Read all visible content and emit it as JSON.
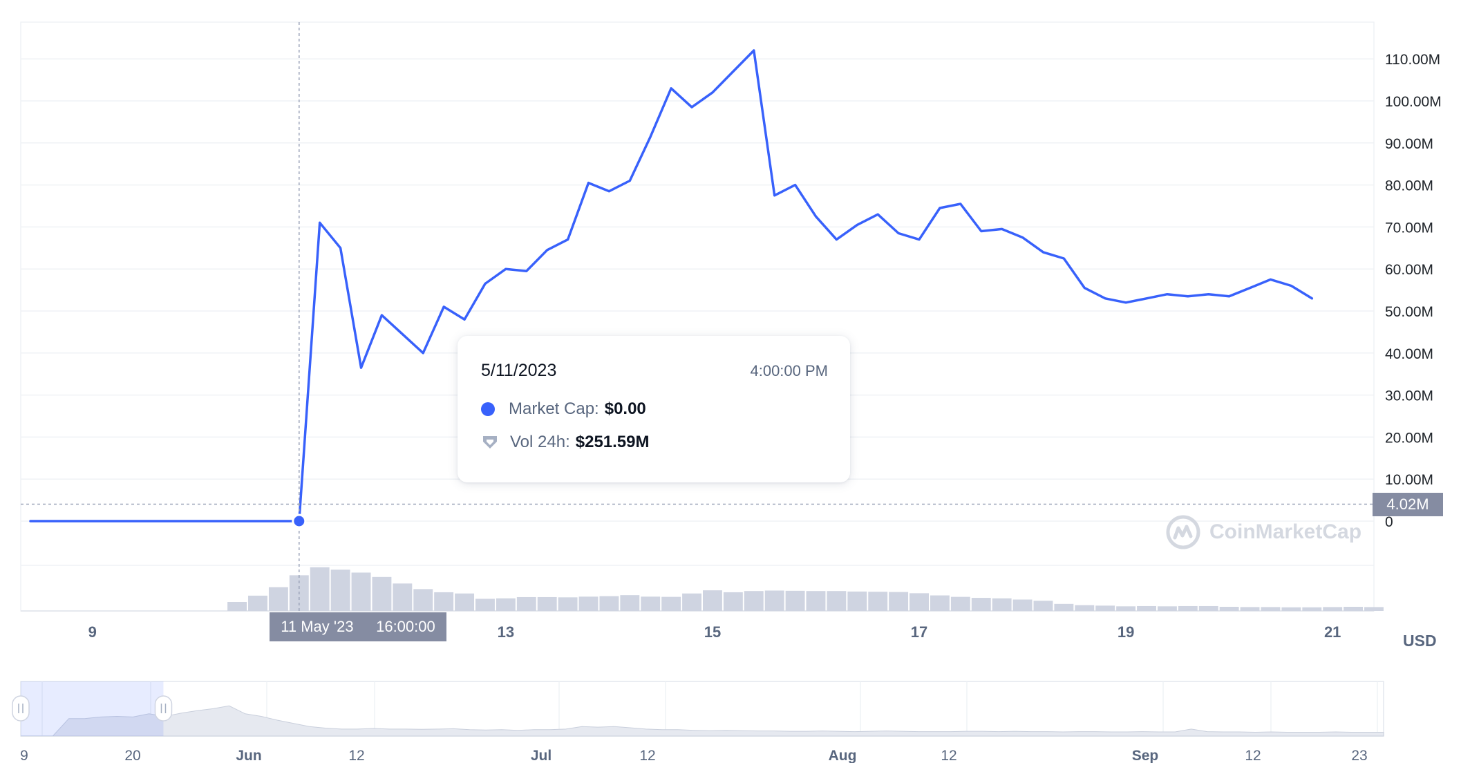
{
  "chart_data": {
    "type": "line",
    "y_axis": {
      "ticks": [
        "0",
        "10.00M",
        "20.00M",
        "30.00M",
        "40.00M",
        "50.00M",
        "60.00M",
        "70.00M",
        "80.00M",
        "90.00M",
        "100.00M",
        "110.00M"
      ],
      "tick_values": [
        0,
        10,
        20,
        30,
        40,
        50,
        60,
        70,
        80,
        90,
        100,
        110
      ],
      "unit": "M",
      "ylim": [
        0,
        120
      ],
      "position": "right"
    },
    "x_axis": {
      "ticks": [
        "9",
        "13",
        "15",
        "17",
        "19",
        "21"
      ],
      "tick_values": [
        9,
        13,
        15,
        17,
        19,
        21
      ],
      "xlim": [
        8.4,
        21.4
      ]
    },
    "currency": "USD",
    "series": [
      {
        "name": "Market Cap",
        "color": "#3861fb",
        "unit": "M",
        "points": [
          [
            8.4,
            0
          ],
          [
            11.0,
            0
          ],
          [
            11.2,
            71
          ],
          [
            11.4,
            65
          ],
          [
            11.6,
            36.5
          ],
          [
            11.8,
            49
          ],
          [
            12.0,
            44.5
          ],
          [
            12.2,
            40
          ],
          [
            12.4,
            51
          ],
          [
            12.6,
            48
          ],
          [
            12.8,
            56.5
          ],
          [
            13.0,
            60
          ],
          [
            13.2,
            59.5
          ],
          [
            13.4,
            64.5
          ],
          [
            13.6,
            67
          ],
          [
            13.8,
            80.5
          ],
          [
            14.0,
            78.5
          ],
          [
            14.2,
            81
          ],
          [
            14.4,
            91.5
          ],
          [
            14.6,
            103
          ],
          [
            14.8,
            98.5
          ],
          [
            15.0,
            102
          ],
          [
            15.2,
            107
          ],
          [
            15.4,
            112
          ],
          [
            15.6,
            77.5
          ],
          [
            15.8,
            80
          ],
          [
            16.0,
            72.5
          ],
          [
            16.2,
            67
          ],
          [
            16.4,
            70.5
          ],
          [
            16.6,
            73
          ],
          [
            16.8,
            68.5
          ],
          [
            17.0,
            67
          ],
          [
            17.2,
            74.5
          ],
          [
            17.4,
            75.5
          ],
          [
            17.6,
            69
          ],
          [
            17.8,
            69.5
          ],
          [
            18.0,
            67.5
          ],
          [
            18.2,
            64
          ],
          [
            18.4,
            62.5
          ],
          [
            18.6,
            55.5
          ],
          [
            18.8,
            53
          ],
          [
            19.0,
            52
          ],
          [
            19.2,
            53
          ],
          [
            19.4,
            54
          ],
          [
            19.6,
            53.5
          ],
          [
            19.8,
            54
          ],
          [
            20.0,
            53.5
          ],
          [
            20.2,
            55.5
          ],
          [
            20.4,
            57.5
          ],
          [
            20.6,
            56
          ],
          [
            20.8,
            53
          ]
        ]
      },
      {
        "name": "Vol 24h",
        "type": "bar",
        "color": "#cfd4e1",
        "unit": "M",
        "bar_start": 10.3,
        "bar_width": 0.2,
        "values": [
          37,
          63,
          98,
          147,
          180,
          170,
          158,
          140,
          113,
          90,
          77,
          72,
          50,
          52,
          57,
          57,
          56,
          59,
          61,
          65,
          59,
          58,
          72,
          85,
          77,
          82,
          84,
          83,
          82,
          82,
          80,
          79,
          78,
          73,
          64,
          58,
          54,
          52,
          47,
          42,
          29,
          24,
          22,
          19,
          20,
          19,
          20,
          20,
          17,
          16,
          16,
          15,
          15,
          16,
          17,
          16
        ],
        "ylim": [
          0,
          370
        ]
      }
    ],
    "crosshair": {
      "x": 11.0,
      "price_label": "4.02M",
      "date_label": "11 May '23",
      "time_label": "16:00:00"
    },
    "tooltip": {
      "date": "5/11/2023",
      "time": "4:00:00 PM",
      "rows": [
        {
          "label": "Market Cap:",
          "value": "$0.00"
        },
        {
          "label": "Vol 24h:",
          "value": "$251.59M"
        }
      ]
    },
    "navigator": {
      "labels": [
        {
          "text": "9",
          "bold": false
        },
        {
          "text": "20",
          "bold": false
        },
        {
          "text": "Jun",
          "bold": true
        },
        {
          "text": "12",
          "bold": false
        },
        {
          "text": "Jul",
          "bold": true
        },
        {
          "text": "12",
          "bold": false
        },
        {
          "text": "Aug",
          "bold": true
        },
        {
          "text": "12",
          "bold": false
        },
        {
          "text": "Sep",
          "bold": true
        },
        {
          "text": "12",
          "bold": false
        },
        {
          "text": "23",
          "bold": false
        }
      ],
      "series": [
        0,
        0,
        0,
        0.55,
        0.55,
        0.6,
        0.62,
        0.6,
        0.7,
        0.62,
        0.72,
        0.8,
        0.86,
        0.95,
        0.7,
        0.62,
        0.5,
        0.4,
        0.3,
        0.25,
        0.22,
        0.22,
        0.24,
        0.22,
        0.22,
        0.21,
        0.22,
        0.23,
        0.2,
        0.19,
        0.2,
        0.18,
        0.2,
        0.2,
        0.22,
        0.3,
        0.28,
        0.3,
        0.26,
        0.22,
        0.2,
        0.2,
        0.18,
        0.17,
        0.18,
        0.17,
        0.16,
        0.16,
        0.15,
        0.15,
        0.16,
        0.15,
        0.14,
        0.15,
        0.16,
        0.15,
        0.14,
        0.14,
        0.14,
        0.15,
        0.15,
        0.14,
        0.15,
        0.14,
        0.14,
        0.13,
        0.14,
        0.14,
        0.13,
        0.13,
        0.14,
        0.13,
        0.13,
        0.22,
        0.14,
        0.13,
        0.13,
        0.12,
        0.13,
        0.12,
        0.12,
        0.12,
        0.13,
        0.12,
        0.12,
        0.12
      ],
      "selection": [
        0,
        0.09
      ]
    },
    "watermark": "CoinMarketCap",
    "grid": true
  }
}
